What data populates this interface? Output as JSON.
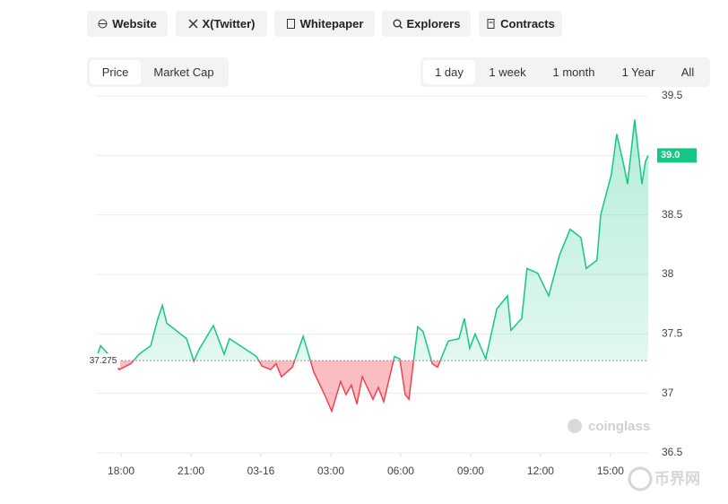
{
  "links": [
    "Website",
    "X(Twitter)",
    "Whitepaper",
    "Explorers",
    "Contracts"
  ],
  "tabs": [
    "Price",
    "Market Cap"
  ],
  "ranges": [
    "1 day",
    "1 week",
    "1 month",
    "1 Year",
    "All"
  ],
  "watermark": "coinglass",
  "site_mark": "币界网",
  "chart_data": {
    "type": "line",
    "x": [
      16.92,
      17.12,
      17.54,
      17.92,
      18.42,
      18.77,
      19.27,
      19.58,
      19.77,
      19.96,
      20.42,
      20.81,
      21.12,
      21.35,
      21.96,
      22.42,
      22.65,
      23.12,
      23.81,
      24.04,
      24.42,
      24.65,
      24.88,
      25.35,
      25.81,
      26.27,
      26.73,
      27.04,
      27.42,
      27.65,
      27.88,
      28.12,
      28.35,
      28.81,
      29.04,
      29.27,
      29.73,
      29.96,
      30.19,
      30.35,
      30.73,
      30.96,
      31.35,
      31.58,
      32.04,
      32.5,
      32.73,
      32.96,
      33.19,
      33.65,
      34.12,
      34.58,
      34.73,
      35.19,
      35.42,
      35.88,
      36.35,
      36.81,
      37.27,
      37.73,
      37.96,
      38.42,
      38.58,
      39.04,
      39.27,
      39.58,
      39.73,
      40.04,
      40.35,
      40.5,
      40.62
    ],
    "values": [
      37.29,
      37.4,
      37.31,
      37.2,
      37.25,
      37.33,
      37.4,
      37.63,
      37.74,
      37.59,
      37.52,
      37.46,
      37.27,
      37.37,
      37.57,
      37.33,
      37.46,
      37.4,
      37.31,
      37.23,
      37.2,
      37.25,
      37.14,
      37.22,
      37.48,
      37.18,
      36.99,
      36.85,
      37.1,
      36.99,
      37.07,
      36.91,
      37.14,
      36.95,
      37.05,
      36.93,
      37.31,
      37.29,
      36.99,
      36.95,
      37.56,
      37.52,
      37.25,
      37.22,
      37.44,
      37.46,
      37.63,
      37.38,
      37.5,
      37.29,
      37.71,
      37.82,
      37.53,
      37.63,
      38.05,
      38.01,
      37.82,
      38.16,
      38.38,
      38.31,
      38.05,
      38.12,
      38.5,
      38.84,
      39.18,
      38.91,
      38.76,
      39.3,
      38.76,
      38.95,
      39.0
    ],
    "up_color": "#16c784",
    "down_color": "#f0434f",
    "baseline": 37.275,
    "price_tag": {
      "value": 39.0,
      "label": "39.0"
    },
    "xlim": [
      16.92,
      40.62
    ],
    "xticks": [
      {
        "value": 18,
        "label": "18:00"
      },
      {
        "value": 21,
        "label": "21:00"
      },
      {
        "value": 24,
        "label": "03-16"
      },
      {
        "value": 27,
        "label": "03:00"
      },
      {
        "value": 30,
        "label": "06:00"
      },
      {
        "value": 33,
        "label": "09:00"
      },
      {
        "value": 36,
        "label": "12:00"
      },
      {
        "value": 39,
        "label": "15:00"
      }
    ],
    "ylim": [
      36.5,
      39.5
    ],
    "yticks": [
      36.5,
      37,
      37.5,
      38,
      38.5,
      39,
      39.5
    ],
    "grid": true
  }
}
